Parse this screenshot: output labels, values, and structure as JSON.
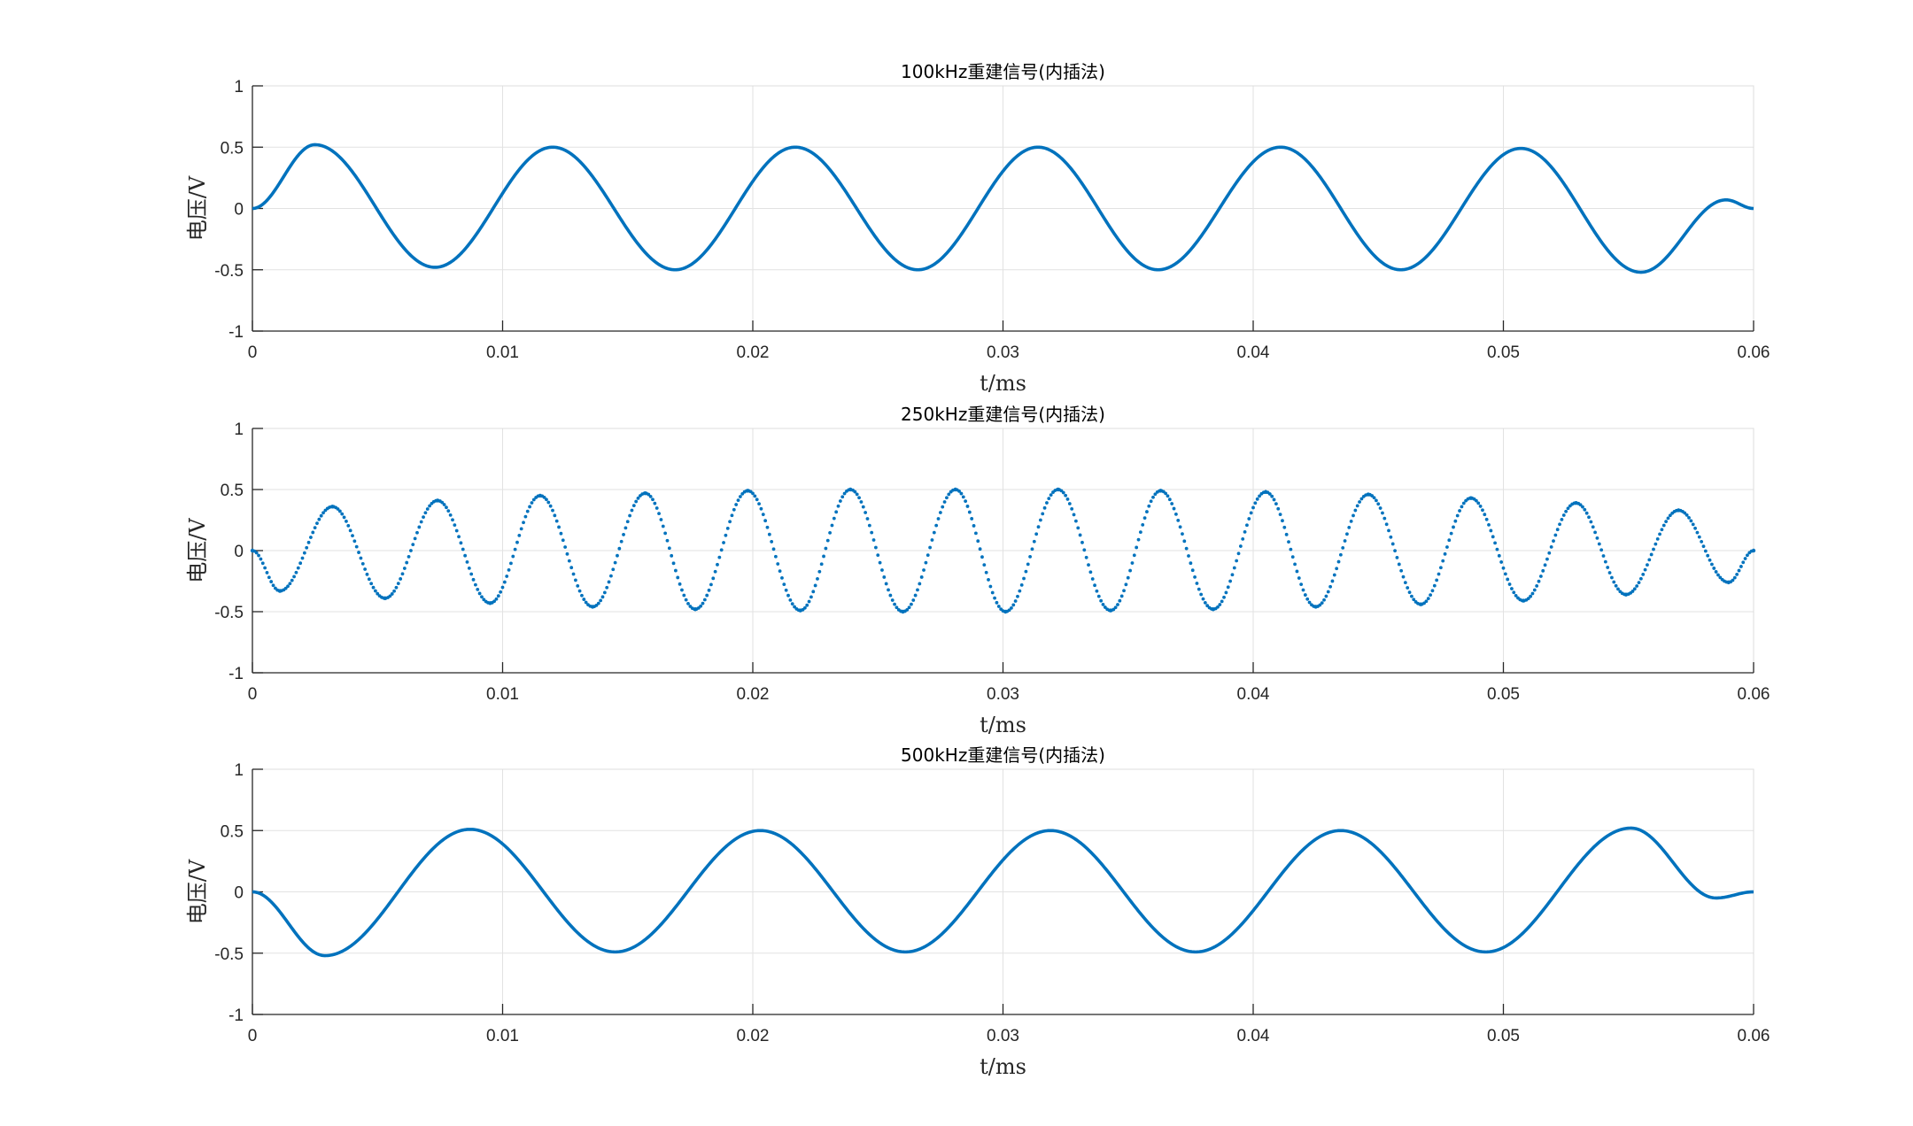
{
  "figure": {
    "line_color": "#0072BD",
    "background": "#ffffff"
  },
  "chart_data": [
    {
      "type": "line",
      "title": "100kHz重建信号(内插法)",
      "xlabel": "t/ms",
      "ylabel": "电压/V",
      "xlim": [
        0,
        0.06
      ],
      "ylim": [
        -1,
        1
      ],
      "xticks": [
        "0",
        "0.01",
        "0.02",
        "0.03",
        "0.04",
        "0.05",
        "0.06"
      ],
      "yticks": [
        "1",
        "0.5",
        "0",
        "-0.5",
        "-1"
      ],
      "grid": true,
      "marker": "line",
      "series": [
        {
          "x": [
            0,
            0.0025,
            0.0073,
            0.012,
            0.0169,
            0.0217,
            0.0266,
            0.0314,
            0.0362,
            0.0411,
            0.0459,
            0.0507,
            0.0555,
            0.0589,
            0.06
          ],
          "values": [
            0,
            0.52,
            -0.48,
            0.5,
            -0.5,
            0.5,
            -0.5,
            0.5,
            -0.5,
            0.5,
            -0.5,
            0.49,
            -0.52,
            0.07,
            0
          ]
        }
      ]
    },
    {
      "type": "line",
      "title": "250kHz重建信号(内插法)",
      "xlabel": "t/ms",
      "ylabel": "电压/V",
      "xlim": [
        0,
        0.06
      ],
      "ylim": [
        -1,
        1
      ],
      "xticks": [
        "0",
        "0.01",
        "0.02",
        "0.03",
        "0.04",
        "0.05",
        "0.06"
      ],
      "yticks": [
        "1",
        "0.5",
        "0",
        "-0.5",
        "-1"
      ],
      "grid": true,
      "marker": "dots",
      "series": [
        {
          "x": [
            0,
            0.0011,
            0.0032,
            0.0053,
            0.0074,
            0.0095,
            0.0115,
            0.0136,
            0.0157,
            0.0177,
            0.0198,
            0.0219,
            0.0239,
            0.026,
            0.0281,
            0.0301,
            0.0322,
            0.0343,
            0.0363,
            0.0384,
            0.0405,
            0.0425,
            0.0446,
            0.0467,
            0.0487,
            0.0508,
            0.0529,
            0.0549,
            0.057,
            0.059,
            0.06
          ],
          "values": [
            0,
            -0.33,
            0.36,
            -0.39,
            0.41,
            -0.43,
            0.45,
            -0.46,
            0.47,
            -0.48,
            0.49,
            -0.49,
            0.5,
            -0.5,
            0.5,
            -0.5,
            0.5,
            -0.49,
            0.49,
            -0.48,
            0.48,
            -0.46,
            0.46,
            -0.44,
            0.43,
            -0.41,
            0.39,
            -0.36,
            0.33,
            -0.26,
            0
          ]
        }
      ]
    },
    {
      "type": "line",
      "title": "500kHz重建信号(内插法)",
      "xlabel": "t/ms",
      "ylabel": "电压/V",
      "xlim": [
        0,
        0.06
      ],
      "ylim": [
        -1,
        1
      ],
      "xticks": [
        "0",
        "0.01",
        "0.02",
        "0.03",
        "0.04",
        "0.05",
        "0.06"
      ],
      "yticks": [
        "1",
        "0.5",
        "0",
        "-0.5",
        "-1"
      ],
      "grid": true,
      "marker": "line",
      "series": [
        {
          "x": [
            0,
            0.0029,
            0.0087,
            0.0145,
            0.0203,
            0.0261,
            0.0319,
            0.0377,
            0.0435,
            0.0493,
            0.0551,
            0.0585,
            0.06
          ],
          "values": [
            0,
            -0.52,
            0.51,
            -0.49,
            0.5,
            -0.49,
            0.5,
            -0.49,
            0.5,
            -0.49,
            0.52,
            -0.05,
            0
          ]
        }
      ]
    }
  ]
}
